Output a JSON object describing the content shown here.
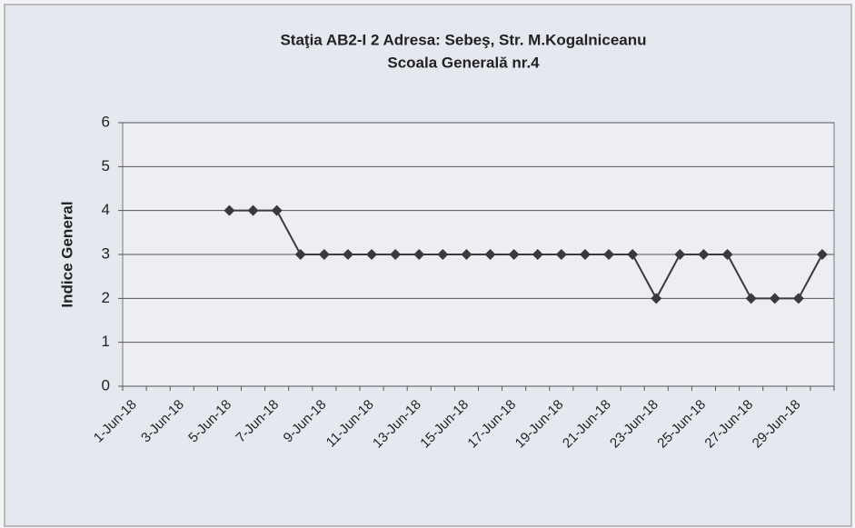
{
  "chart_data": {
    "type": "line",
    "title": "Staţia AB2-I 2  Adresa: Sebeş, Str. M.Kogalniceanu",
    "subtitle": "Scoala Generală nr.4",
    "ylabel": "Indice General",
    "categories": [
      "1-Jun-18",
      null,
      "3-Jun-18",
      null,
      "5-Jun-18",
      null,
      "7-Jun-18",
      null,
      "9-Jun-18",
      null,
      "11-Jun-18",
      null,
      "13-Jun-18",
      null,
      "15-Jun-18",
      null,
      "17-Jun-18",
      null,
      "19-Jun-18",
      null,
      "21-Jun-18",
      null,
      "23-Jun-18",
      null,
      "25-Jun-18",
      null,
      "27-Jun-18",
      null,
      "29-Jun-18",
      null
    ],
    "series": [
      {
        "name": "Indice General",
        "color": "#3a3a3a",
        "values": [
          null,
          null,
          null,
          null,
          4,
          4,
          4,
          3,
          3,
          3,
          3,
          3,
          3,
          3,
          3,
          3,
          3,
          3,
          3,
          3,
          3,
          3,
          2,
          3,
          3,
          3,
          2,
          2,
          2,
          3
        ]
      }
    ],
    "ylim": [
      0,
      6
    ],
    "yticks": [
      0,
      1,
      2,
      3,
      4,
      5,
      6
    ],
    "grid": true
  }
}
